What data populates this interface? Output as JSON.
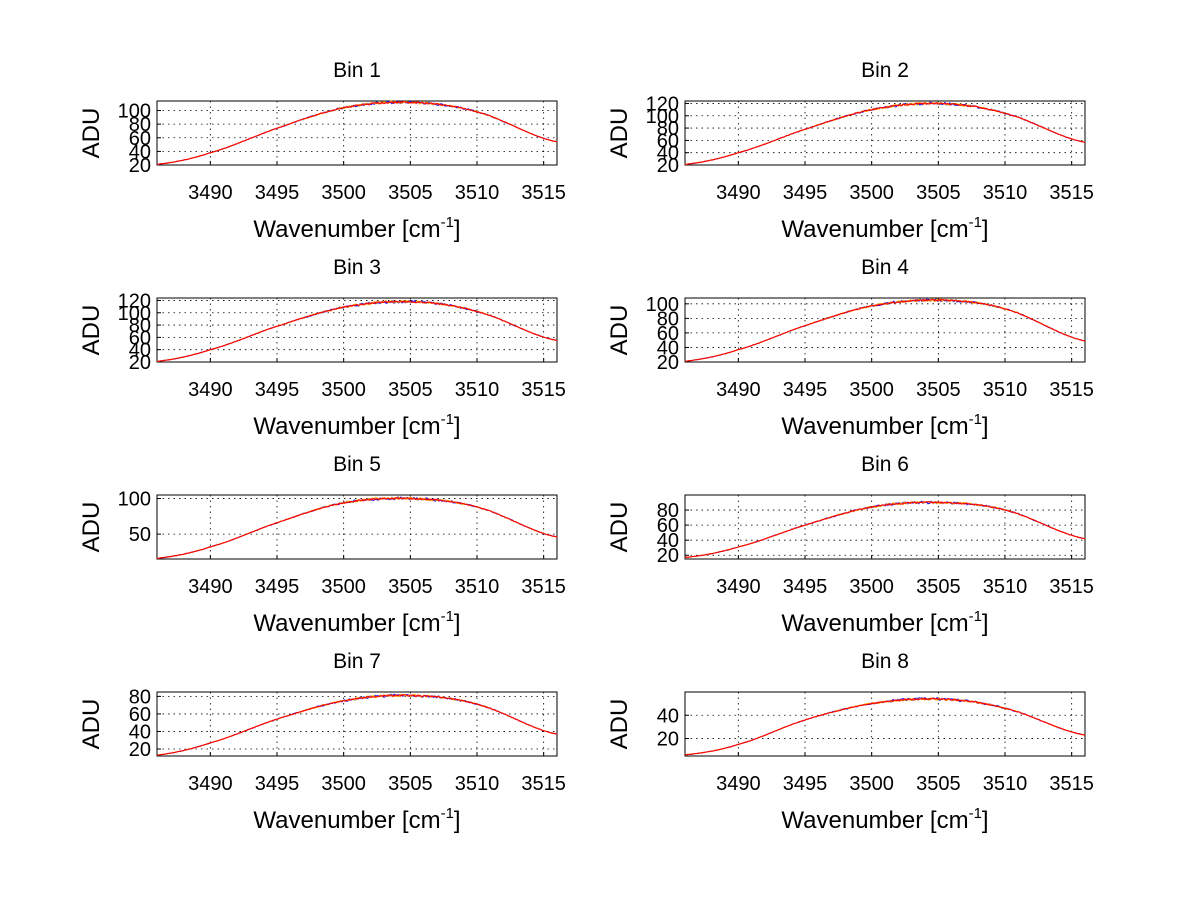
{
  "figure": {
    "background": "#ffffff"
  },
  "chart_data": [
    {
      "type": "line",
      "title": "Bin 1",
      "xlabel": "Wavenumber [cm",
      "xlabel_sup": "-1",
      "xlabel_close": "]",
      "ylabel": "ADU",
      "xlim": [
        3486,
        3516
      ],
      "ylim": [
        20,
        114
      ],
      "xticks": [
        3490,
        3495,
        3500,
        3505,
        3510,
        3515
      ],
      "yticks": [
        20,
        40,
        60,
        80,
        100
      ],
      "grid": true,
      "series": [
        {
          "color": "#ff0000",
          "x": [
            3486,
            3490,
            3495,
            3500,
            3505,
            3510,
            3516
          ],
          "y": [
            21,
            38,
            74,
            104,
            112,
            98,
            54
          ]
        }
      ]
    },
    {
      "type": "line",
      "title": "Bin 2",
      "xlabel": "Wavenumber [cm",
      "xlabel_sup": "-1",
      "xlabel_close": "]",
      "ylabel": "ADU",
      "xlim": [
        3486,
        3516
      ],
      "ylim": [
        20,
        124
      ],
      "xticks": [
        3490,
        3495,
        3500,
        3505,
        3510,
        3515
      ],
      "yticks": [
        20,
        40,
        60,
        80,
        100,
        120
      ],
      "grid": true,
      "series": [
        {
          "color": "#ff0000",
          "x": [
            3486,
            3490,
            3495,
            3500,
            3505,
            3510,
            3516
          ],
          "y": [
            21,
            40,
            78,
            110,
            120,
            104,
            57
          ]
        }
      ]
    },
    {
      "type": "line",
      "title": "Bin 3",
      "xlabel": "Wavenumber [cm",
      "xlabel_sup": "-1",
      "xlabel_close": "]",
      "ylabel": "ADU",
      "xlim": [
        3486,
        3516
      ],
      "ylim": [
        20,
        124
      ],
      "xticks": [
        3490,
        3495,
        3500,
        3505,
        3510,
        3515
      ],
      "yticks": [
        20,
        40,
        60,
        80,
        100,
        120
      ],
      "grid": true,
      "series": [
        {
          "color": "#ff0000",
          "x": [
            3486,
            3490,
            3495,
            3500,
            3505,
            3510,
            3516
          ],
          "y": [
            21,
            40,
            78,
            109,
            118,
            102,
            55
          ]
        }
      ]
    },
    {
      "type": "line",
      "title": "Bin 4",
      "xlabel": "Wavenumber [cm",
      "xlabel_sup": "-1",
      "xlabel_close": "]",
      "ylabel": "ADU",
      "xlim": [
        3486,
        3516
      ],
      "ylim": [
        20,
        108
      ],
      "xticks": [
        3490,
        3495,
        3500,
        3505,
        3510,
        3515
      ],
      "yticks": [
        20,
        40,
        60,
        80,
        100
      ],
      "grid": true,
      "series": [
        {
          "color": "#ff0000",
          "x": [
            3486,
            3490,
            3495,
            3500,
            3505,
            3510,
            3516
          ],
          "y": [
            21,
            37,
            70,
            97,
            105,
            93,
            49
          ]
        }
      ]
    },
    {
      "type": "line",
      "title": "Bin 5",
      "xlabel": "Wavenumber [cm",
      "xlabel_sup": "-1",
      "xlabel_close": "]",
      "ylabel": "ADU",
      "xlim": [
        3486,
        3516
      ],
      "ylim": [
        15,
        105
      ],
      "xticks": [
        3490,
        3495,
        3500,
        3505,
        3510,
        3515
      ],
      "yticks": [
        50,
        100
      ],
      "grid": true,
      "series": [
        {
          "color": "#ff0000",
          "x": [
            3486,
            3490,
            3495,
            3500,
            3505,
            3510,
            3516
          ],
          "y": [
            16,
            32,
            66,
            94,
            100,
            88,
            46
          ]
        }
      ]
    },
    {
      "type": "line",
      "title": "Bin 6",
      "xlabel": "Wavenumber [cm",
      "xlabel_sup": "-1",
      "xlabel_close": "]",
      "ylabel": "ADU",
      "xlim": [
        3486,
        3516
      ],
      "ylim": [
        15,
        100
      ],
      "xticks": [
        3490,
        3495,
        3500,
        3505,
        3510,
        3515
      ],
      "yticks": [
        20,
        40,
        60,
        80
      ],
      "grid": true,
      "series": [
        {
          "color": "#ff0000",
          "x": [
            3486,
            3490,
            3495,
            3500,
            3505,
            3510,
            3516
          ],
          "y": [
            17,
            31,
            60,
            84,
            90,
            80,
            42
          ]
        }
      ]
    },
    {
      "type": "line",
      "title": "Bin 7",
      "xlabel": "Wavenumber [cm",
      "xlabel_sup": "-1",
      "xlabel_close": "]",
      "ylabel": "ADU",
      "xlim": [
        3486,
        3516
      ],
      "ylim": [
        12,
        85
      ],
      "xticks": [
        3490,
        3495,
        3500,
        3505,
        3510,
        3515
      ],
      "yticks": [
        20,
        40,
        60,
        80
      ],
      "grid": true,
      "series": [
        {
          "color": "#ff0000",
          "x": [
            3486,
            3490,
            3495,
            3500,
            3505,
            3510,
            3516
          ],
          "y": [
            13,
            27,
            54,
            75,
            81,
            71,
            37
          ]
        }
      ]
    },
    {
      "type": "line",
      "title": "Bin 8",
      "xlabel": "Wavenumber [cm",
      "xlabel_sup": "-1",
      "xlabel_close": "]",
      "ylabel": "ADU",
      "xlim": [
        3486,
        3516
      ],
      "ylim": [
        5,
        60
      ],
      "xticks": [
        3490,
        3495,
        3500,
        3505,
        3510,
        3515
      ],
      "yticks": [
        20,
        40
      ],
      "grid": true,
      "series": [
        {
          "color": "#ff0000",
          "x": [
            3486,
            3490,
            3495,
            3500,
            3505,
            3510,
            3516
          ],
          "y": [
            6,
            15,
            36,
            50,
            54,
            46,
            23
          ]
        }
      ]
    }
  ]
}
